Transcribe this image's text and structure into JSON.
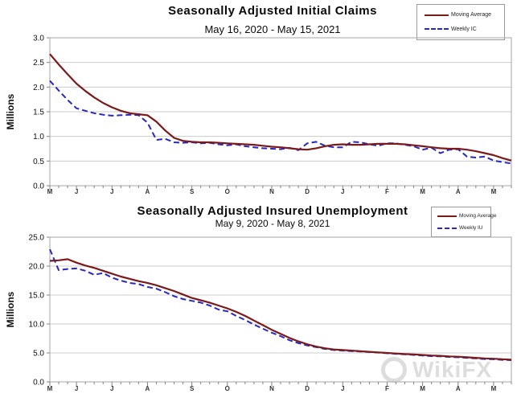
{
  "watermark": {
    "text": "WikiFX"
  },
  "colors": {
    "moving_average": "#7b1a1a",
    "weekly": "#2727c4",
    "gridline": "#cccccc",
    "plot_border": "#a6a6a6",
    "axis": "#808080"
  },
  "chart_data": [
    {
      "type": "line",
      "title": "Seasonally  Adjusted  Initial  Claims",
      "subtitle": "May 16, 2020 - May 15, 2021",
      "ylabel": "Millions",
      "ylim": [
        0,
        3.0
      ],
      "yticks": [
        3.0,
        2.5,
        2.0,
        1.5,
        1.0,
        0.5,
        0.0
      ],
      "grid": "horizontal",
      "legend_position": "top-right",
      "n_points": 53,
      "x_unit": "week",
      "month_tick_labels": [
        "M",
        "J",
        "J",
        "A",
        "S",
        "O",
        "N",
        "D",
        "J",
        "F",
        "M",
        "A",
        "M"
      ],
      "month_tick_weeks": [
        0,
        3,
        7,
        11,
        16,
        20,
        25,
        29,
        33,
        38,
        42,
        46,
        50
      ],
      "series": [
        {
          "name": "Moving Average",
          "style": "solid",
          "color": "#7b1a1a",
          "values": [
            2.67,
            2.46,
            2.26,
            2.07,
            1.92,
            1.79,
            1.68,
            1.59,
            1.52,
            1.47,
            1.45,
            1.43,
            1.3,
            1.12,
            0.97,
            0.91,
            0.89,
            0.88,
            0.88,
            0.87,
            0.86,
            0.85,
            0.84,
            0.83,
            0.81,
            0.79,
            0.78,
            0.76,
            0.74,
            0.73,
            0.76,
            0.8,
            0.83,
            0.84,
            0.83,
            0.83,
            0.84,
            0.85,
            0.85,
            0.85,
            0.84,
            0.82,
            0.8,
            0.78,
            0.76,
            0.75,
            0.75,
            0.73,
            0.7,
            0.66,
            0.62,
            0.56,
            0.51
          ]
        },
        {
          "name": "Weekly IC",
          "style": "dashed",
          "color": "#2727c4",
          "values": [
            2.13,
            1.93,
            1.74,
            1.57,
            1.52,
            1.47,
            1.44,
            1.42,
            1.43,
            1.44,
            1.43,
            1.28,
            0.93,
            0.95,
            0.88,
            0.87,
            0.88,
            0.86,
            0.87,
            0.84,
            0.82,
            0.84,
            0.8,
            0.78,
            0.76,
            0.75,
            0.74,
            0.77,
            0.72,
            0.86,
            0.89,
            0.81,
            0.78,
            0.78,
            0.89,
            0.88,
            0.84,
            0.81,
            0.86,
            0.86,
            0.83,
            0.8,
            0.73,
            0.77,
            0.66,
            0.73,
            0.74,
            0.59,
            0.57,
            0.59,
            0.51,
            0.48,
            0.45
          ]
        }
      ]
    },
    {
      "type": "line",
      "title": "Seasonally  Adjusted  Insured  Unemployment",
      "subtitle": "May 9, 2020 - May 8, 2021",
      "ylabel": "Millions",
      "ylim": [
        0,
        25.0
      ],
      "yticks": [
        25.0,
        20.0,
        15.0,
        10.0,
        5.0,
        0.0
      ],
      "grid": "horizontal",
      "legend_position": "top-right",
      "n_points": 53,
      "x_unit": "week",
      "month_tick_labels": [
        "M",
        "J",
        "J",
        "A",
        "S",
        "O",
        "N",
        "D",
        "J",
        "F",
        "M",
        "A",
        "M"
      ],
      "month_tick_weeks": [
        0,
        3,
        7,
        11,
        16,
        20,
        25,
        29,
        33,
        38,
        42,
        46,
        50
      ],
      "series": [
        {
          "name": "Moving Average",
          "style": "solid",
          "color": "#7b1a1a",
          "values": [
            20.9,
            21.0,
            21.2,
            20.6,
            20.1,
            19.7,
            19.2,
            18.7,
            18.2,
            17.8,
            17.4,
            17.1,
            16.7,
            16.2,
            15.7,
            15.1,
            14.5,
            14.1,
            13.7,
            13.2,
            12.7,
            12.1,
            11.4,
            10.6,
            9.8,
            9.0,
            8.3,
            7.6,
            7.0,
            6.5,
            6.1,
            5.8,
            5.6,
            5.5,
            5.4,
            5.3,
            5.2,
            5.1,
            5.0,
            4.9,
            4.8,
            4.75,
            4.65,
            4.55,
            4.5,
            4.4,
            4.35,
            4.25,
            4.15,
            4.05,
            4.0,
            3.9,
            3.85
          ]
        },
        {
          "name": "Weekly IU",
          "style": "dashed",
          "color": "#2727c4",
          "values": [
            22.9,
            19.3,
            19.5,
            19.6,
            19.2,
            18.5,
            18.8,
            18.0,
            17.5,
            17.1,
            16.9,
            16.4,
            16.1,
            15.5,
            14.8,
            14.3,
            14.0,
            13.7,
            13.2,
            12.5,
            12.2,
            11.4,
            10.7,
            9.9,
            9.2,
            8.5,
            7.9,
            7.2,
            6.7,
            6.3,
            6.0,
            5.7,
            5.5,
            5.4,
            5.3,
            5.25,
            5.15,
            5.05,
            4.95,
            4.85,
            4.75,
            4.65,
            4.55,
            4.45,
            4.4,
            4.3,
            4.25,
            4.15,
            4.05,
            3.95,
            3.9,
            3.8,
            3.75
          ]
        }
      ]
    }
  ]
}
